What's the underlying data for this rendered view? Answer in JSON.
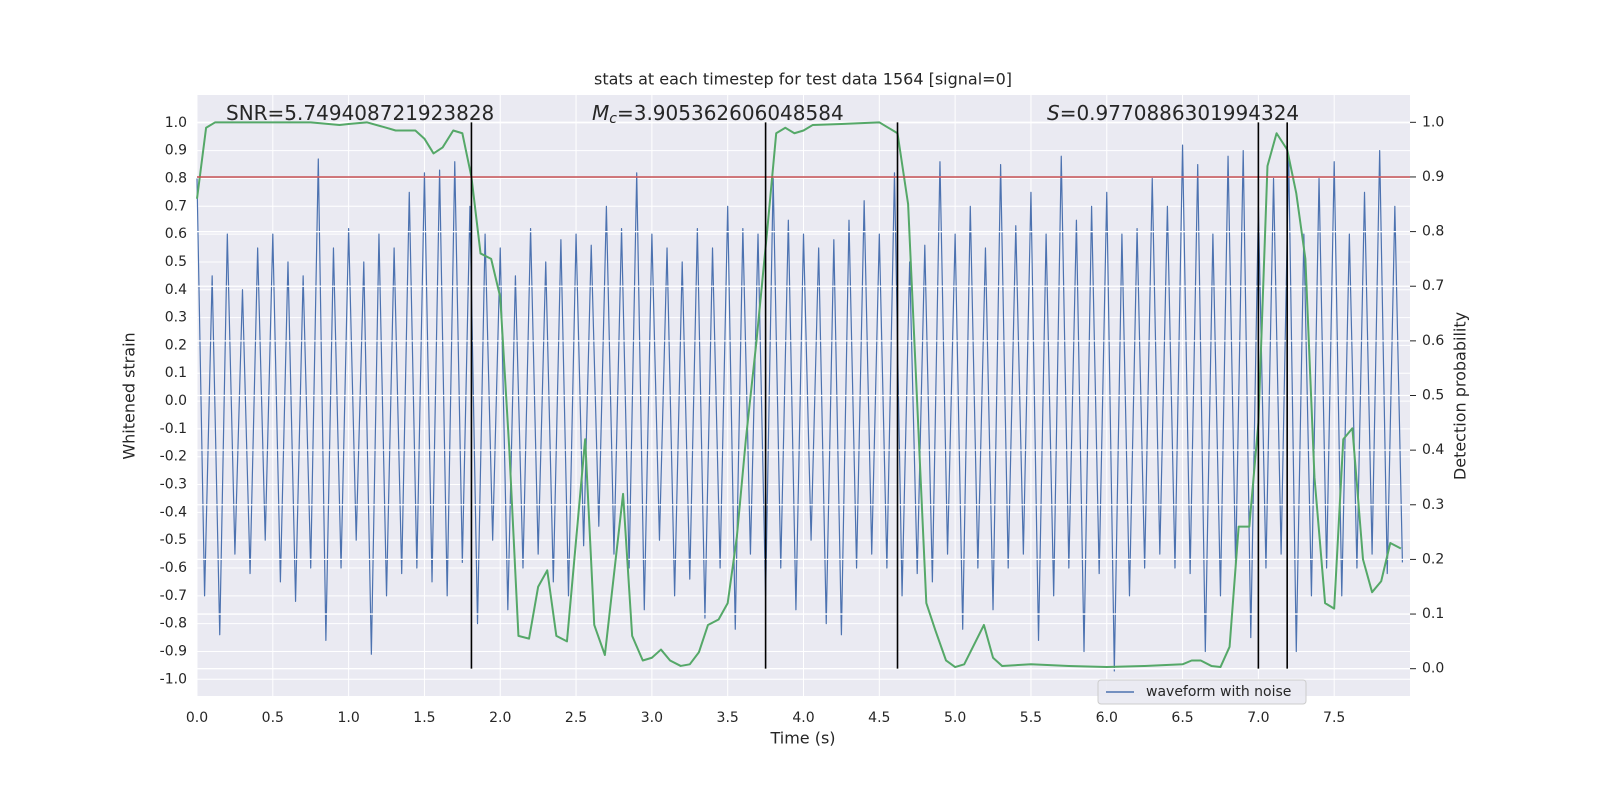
{
  "chart_data": {
    "type": "line",
    "title": "stats at each timestep for test data 1564 [signal=0]",
    "xlabel": "Time (s)",
    "ylabel": "Whitened strain",
    "y2label": "Detection probability",
    "annotations": [
      {
        "text": "SNR=5.749408721923828"
      },
      {
        "symbol": "M",
        "subscript": "c",
        "text": "=3.905362606048584"
      },
      {
        "symbol": "S",
        "text": "=0.9770886301994324"
      }
    ],
    "xlim": [
      0,
      8
    ],
    "ylim": [
      -1.06,
      1.1
    ],
    "y2lim": [
      -0.05,
      1.05
    ],
    "xticks": [
      {
        "value": 0,
        "label": "0.0"
      },
      0.5,
      {
        "value": 1,
        "label": "1.0"
      },
      1.5,
      {
        "value": 2,
        "label": "2.0"
      },
      2.5,
      {
        "value": 3,
        "label": "3.0"
      },
      3.5,
      {
        "value": 4,
        "label": "4.0"
      },
      4.5,
      {
        "value": 5,
        "label": "5.0"
      },
      5.5,
      {
        "value": 6,
        "label": "6.0"
      },
      6.5,
      {
        "value": 7,
        "label": "7.0"
      },
      7.5
    ],
    "yticks": [
      {
        "value": -1,
        "label": "-1.0"
      },
      -0.9,
      -0.8,
      -0.7,
      -0.6,
      -0.5,
      -0.4,
      -0.3,
      -0.2,
      -0.1,
      {
        "value": 0,
        "label": "0.0"
      },
      0.1,
      0.2,
      0.3,
      0.4,
      0.5,
      0.6,
      0.7,
      0.8,
      0.9,
      {
        "value": 1,
        "label": "1.0"
      }
    ],
    "y2ticks": [
      {
        "value": 0,
        "label": "0.0"
      },
      0.1,
      0.2,
      0.3,
      0.4,
      0.5,
      0.6,
      0.7,
      0.8,
      0.9,
      {
        "value": 1,
        "label": "1.0"
      }
    ],
    "grid": true,
    "legend": "best",
    "series": [
      {
        "name": "waveform with noise",
        "color": "#4c72b0",
        "x": [
          0,
          0.05,
          0.1,
          0.15,
          0.2,
          0.25,
          0.3,
          0.35,
          0.4,
          0.45,
          0.5,
          0.55,
          0.6,
          0.65,
          0.7,
          0.75,
          0.8,
          0.85,
          0.9,
          0.95,
          1,
          1.05,
          1.1,
          1.15,
          1.2,
          1.25,
          1.3,
          1.35,
          1.4,
          1.45,
          1.5,
          1.55,
          1.6,
          1.65,
          1.7,
          1.75,
          1.8,
          1.85,
          1.9,
          1.95,
          2,
          2.05,
          2.1,
          2.15,
          2.2,
          2.25,
          2.3,
          2.35,
          2.4,
          2.45,
          2.5,
          2.55,
          2.6,
          2.65,
          2.7,
          2.75,
          2.8,
          2.85,
          2.9,
          2.95,
          3,
          3.05,
          3.1,
          3.15,
          3.2,
          3.25,
          3.3,
          3.35,
          3.4,
          3.45,
          3.5,
          3.55,
          3.6,
          3.65,
          3.7,
          3.75,
          3.8,
          3.85,
          3.9,
          3.95,
          4,
          4.05,
          4.1,
          4.15,
          4.2,
          4.25,
          4.3,
          4.35,
          4.4,
          4.45,
          4.5,
          4.55,
          4.6,
          4.65,
          4.7,
          4.75,
          4.8,
          4.85,
          4.9,
          4.95,
          5,
          5.05,
          5.1,
          5.15,
          5.2,
          5.25,
          5.3,
          5.35,
          5.4,
          5.45,
          5.5,
          5.55,
          5.6,
          5.65,
          5.7,
          5.75,
          5.8,
          5.85,
          5.9,
          5.95,
          6,
          6.05,
          6.1,
          6.15,
          6.2,
          6.25,
          6.3,
          6.35,
          6.4,
          6.45,
          6.5,
          6.55,
          6.6,
          6.65,
          6.7,
          6.75,
          6.8,
          6.85,
          6.9,
          6.95,
          7,
          7.05,
          7.1,
          7.15,
          7.2,
          7.25,
          7.3,
          7.35,
          7.4,
          7.45,
          7.5,
          7.55,
          7.6,
          7.65,
          7.7,
          7.75,
          7.8,
          7.85,
          7.9,
          7.95
        ],
        "values": [
          0.8,
          -0.7,
          0.45,
          -0.84,
          0.6,
          -0.55,
          0.4,
          -0.62,
          0.55,
          -0.5,
          0.6,
          -0.65,
          0.5,
          -0.72,
          0.45,
          -0.6,
          0.87,
          -0.86,
          0.55,
          -0.6,
          0.62,
          -0.5,
          0.5,
          -0.91,
          0.6,
          -0.7,
          0.55,
          -0.62,
          0.75,
          -0.6,
          0.82,
          -0.65,
          0.83,
          -0.7,
          0.86,
          -0.58,
          0.7,
          -0.8,
          0.6,
          -0.5,
          0.55,
          -0.75,
          0.45,
          -0.6,
          0.62,
          -0.55,
          0.5,
          -0.65,
          0.58,
          -0.7,
          0.6,
          -0.52,
          0.56,
          -0.45,
          0.7,
          -0.55,
          0.62,
          -0.6,
          0.82,
          -0.75,
          0.6,
          -0.5,
          0.55,
          -0.7,
          0.5,
          -0.64,
          0.62,
          -0.78,
          0.55,
          -0.6,
          0.7,
          -0.82,
          0.62,
          -0.55,
          0.6,
          -0.7,
          0.8,
          -0.6,
          0.65,
          -0.75,
          0.6,
          -0.5,
          0.55,
          -0.8,
          0.58,
          -0.84,
          0.65,
          -0.6,
          0.72,
          -0.55,
          0.6,
          -0.6,
          0.82,
          -0.7,
          0.5,
          -0.62,
          0.56,
          -0.65,
          0.86,
          -0.55,
          0.6,
          -0.82,
          0.7,
          -0.6,
          0.55,
          -0.75,
          0.85,
          -0.6,
          0.63,
          -0.55,
          0.75,
          -0.86,
          0.6,
          -0.7,
          0.88,
          -0.6,
          0.65,
          -0.9,
          0.7,
          -0.62,
          0.75,
          -0.97,
          0.6,
          -0.7,
          0.62,
          -0.6,
          0.8,
          -0.55,
          0.7,
          -0.6,
          0.92,
          -0.62,
          0.85,
          -0.9,
          0.6,
          -0.7,
          0.88,
          -0.6,
          0.9,
          -0.85,
          0.7,
          -0.6,
          0.8,
          -0.55,
          0.88,
          -0.9,
          0.6,
          -0.7,
          0.8,
          -0.6,
          0.86,
          -0.7,
          0.6,
          -0.6,
          0.75,
          -0.55,
          0.9,
          -0.62,
          0.7,
          -0.58
        ]
      },
      {
        "color": "#55a868",
        "axis": "y2",
        "x": [
          0,
          0.06,
          0.12,
          0.25,
          0.5,
          0.75,
          0.94,
          1.0,
          1.12,
          1.25,
          1.31,
          1.44,
          1.5,
          1.56,
          1.62,
          1.69,
          1.75,
          1.81,
          1.87,
          1.94,
          2.0,
          2.06,
          2.12,
          2.19,
          2.25,
          2.31,
          2.37,
          2.44,
          2.56,
          2.62,
          2.69,
          2.81,
          2.87,
          2.94,
          3.0,
          3.06,
          3.12,
          3.19,
          3.25,
          3.31,
          3.37,
          3.44,
          3.5,
          3.56,
          3.62,
          3.69,
          3.76,
          3.82,
          3.88,
          3.94,
          4.0,
          4.06,
          4.25,
          4.5,
          4.62,
          4.69,
          4.81,
          4.87,
          4.94,
          5.0,
          5.06,
          5.19,
          5.25,
          5.31,
          5.5,
          5.75,
          6.0,
          6.25,
          6.5,
          6.56,
          6.62,
          6.69,
          6.75,
          6.81,
          6.87,
          6.94,
          7.0,
          7.06,
          7.12,
          7.19,
          7.25,
          7.31,
          7.37,
          7.44,
          7.5,
          7.56,
          7.62,
          7.69,
          7.75,
          7.81,
          7.87,
          7.94
        ],
        "values": [
          0.86,
          0.99,
          1.0,
          1.0,
          1.0,
          1.0,
          0.995,
          0.997,
          1.0,
          0.99,
          0.985,
          0.985,
          0.97,
          0.943,
          0.954,
          0.985,
          0.98,
          0.9,
          0.76,
          0.75,
          0.68,
          0.4,
          0.06,
          0.055,
          0.15,
          0.18,
          0.06,
          0.05,
          0.42,
          0.08,
          0.025,
          0.32,
          0.06,
          0.015,
          0.02,
          0.035,
          0.015,
          0.005,
          0.008,
          0.03,
          0.08,
          0.09,
          0.12,
          0.24,
          0.42,
          0.6,
          0.8,
          0.98,
          0.99,
          0.98,
          0.985,
          0.995,
          0.997,
          1.0,
          0.98,
          0.85,
          0.12,
          0.07,
          0.015,
          0.003,
          0.008,
          0.08,
          0.02,
          0.005,
          0.008,
          0.005,
          0.003,
          0.005,
          0.008,
          0.015,
          0.015,
          0.005,
          0.003,
          0.04,
          0.26,
          0.26,
          0.45,
          0.92,
          0.98,
          0.95,
          0.87,
          0.75,
          0.35,
          0.12,
          0.11,
          0.42,
          0.44,
          0.2,
          0.14,
          0.16,
          0.23,
          0.22
        ]
      }
    ],
    "threshold": {
      "value": 0.9,
      "axis": "y2",
      "color": "#c44e52"
    },
    "vlines": {
      "x": [
        1.81,
        3.75,
        4.62,
        7.0,
        7.19
      ],
      "ymin": 0,
      "ymax": 1,
      "axis": "y2",
      "color": "#000000"
    }
  }
}
